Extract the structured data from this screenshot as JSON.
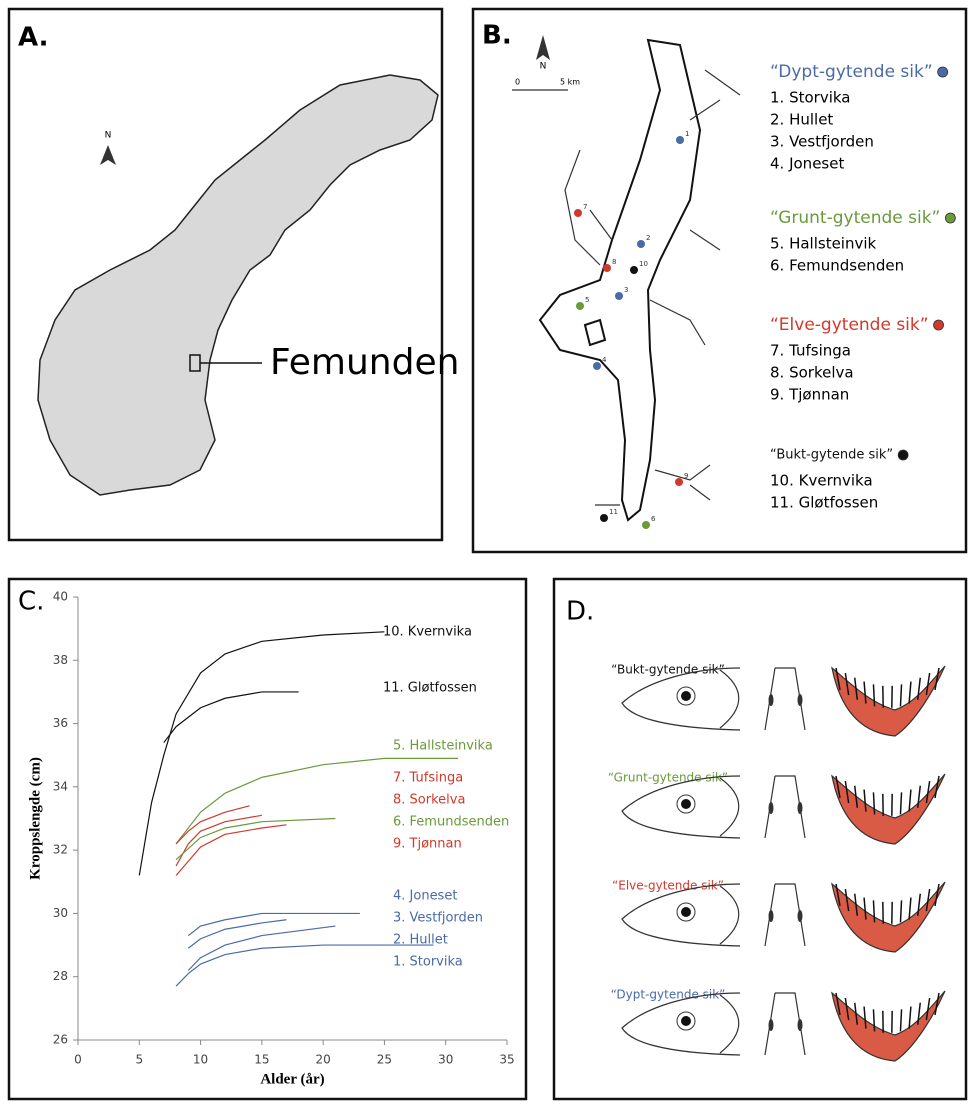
{
  "panel_a": {
    "letter": "A.",
    "north": "N",
    "label": "Femunden"
  },
  "panel_b": {
    "letter": "B.",
    "north": "N",
    "scale": [
      "0",
      "5 km"
    ],
    "sites": [
      {
        "label": "1",
        "color": "#4a6aa8"
      },
      {
        "label": "2",
        "color": "#4a6aa8"
      },
      {
        "label": "3",
        "color": "#4a6aa8"
      },
      {
        "label": "4",
        "color": "#4a6aa8"
      },
      {
        "label": "5",
        "color": "#6a9a3a"
      },
      {
        "label": "6",
        "color": "#6a9a3a"
      },
      {
        "label": "7",
        "color": "#d0392b"
      },
      {
        "label": "8",
        "color": "#d0392b"
      },
      {
        "label": "9",
        "color": "#d0392b"
      },
      {
        "label": "10",
        "color": "#111111"
      },
      {
        "label": "11",
        "color": "#111111"
      }
    ],
    "groups": [
      {
        "title": "“Dypt-gytende sik”",
        "color": "#4a6aa8",
        "items": [
          "1. Storvika",
          "2. Hullet",
          "3. Vestfjorden",
          "4. Joneset"
        ]
      },
      {
        "title": "“Grunt-gytende sik”",
        "color": "#6a9a3a",
        "items": [
          "5. Hallsteinvik",
          "6. Femundsenden"
        ]
      },
      {
        "title": "“Elve-gytende sik”",
        "color": "#d0392b",
        "items": [
          "7. Tufsinga",
          "8. Sorkelva",
          "9. Tjønnan"
        ]
      },
      {
        "title": "“Bukt-gytende sik”",
        "color": "#111111",
        "items": [
          "10. Kvernvika",
          "11. Gløtfossen"
        ]
      }
    ]
  },
  "chart_data": {
    "type": "line",
    "label": "C.",
    "x_label": "Alder (år)",
    "y_label": "Kroppslengde (cm)",
    "xlim": [
      0,
      35
    ],
    "xticks": [
      0,
      5,
      10,
      15,
      20,
      25,
      30,
      35
    ],
    "ylim": [
      26,
      40
    ],
    "yticks": [
      26,
      28,
      30,
      32,
      34,
      36,
      38,
      40
    ],
    "series": [
      {
        "name": "10. Kvernvika",
        "color": "#111111",
        "x": [
          5,
          6,
          7,
          8,
          10,
          12,
          15,
          20,
          25
        ],
        "values": [
          31.2,
          33.5,
          35,
          36.3,
          37.6,
          38.2,
          38.6,
          38.8,
          38.9
        ]
      },
      {
        "name": "11. Gløtfossen",
        "color": "#111111",
        "x": [
          7,
          8,
          10,
          12,
          15,
          18
        ],
        "values": [
          35.4,
          35.9,
          36.5,
          36.8,
          37,
          37
        ]
      },
      {
        "name": "5. Hallsteinvika",
        "color": "#6a9a3a",
        "x": [
          8,
          10,
          12,
          15,
          20,
          25,
          31
        ],
        "values": [
          32.2,
          33.2,
          33.8,
          34.3,
          34.7,
          34.9,
          34.9
        ]
      },
      {
        "name": "7. Tufsinga",
        "color": "#d0392b",
        "x": [
          8,
          9,
          10,
          12,
          14
        ],
        "values": [
          32.2,
          32.6,
          32.9,
          33.2,
          33.4
        ]
      },
      {
        "name": "8. Sorkelva",
        "color": "#d0392b",
        "x": [
          8,
          9,
          10,
          12,
          15
        ],
        "values": [
          31.5,
          32.2,
          32.6,
          32.9,
          33.1
        ]
      },
      {
        "name": "6. Femundsenden",
        "color": "#6a9a3a",
        "x": [
          8,
          10,
          12,
          15,
          21
        ],
        "values": [
          31.7,
          32.4,
          32.7,
          32.9,
          33
        ]
      },
      {
        "name": "9. Tjønnan",
        "color": "#d0392b",
        "x": [
          8,
          10,
          12,
          15,
          17
        ],
        "values": [
          31.2,
          32.1,
          32.5,
          32.7,
          32.8
        ]
      },
      {
        "name": "4. Joneset",
        "color": "#4a6aa8",
        "x": [
          9,
          10,
          12,
          15,
          20,
          23
        ],
        "values": [
          29.3,
          29.6,
          29.8,
          30,
          30,
          30
        ]
      },
      {
        "name": "3. Vestfjorden",
        "color": "#4a6aa8",
        "x": [
          9,
          10,
          12,
          15,
          17
        ],
        "values": [
          28.9,
          29.2,
          29.5,
          29.7,
          29.8
        ]
      },
      {
        "name": "2. Hullet",
        "color": "#4a6aa8",
        "x": [
          9,
          10,
          12,
          15,
          21
        ],
        "values": [
          28.2,
          28.6,
          29,
          29.3,
          29.6
        ]
      },
      {
        "name": "1. Storvika",
        "color": "#4a6aa8",
        "x": [
          8,
          9,
          10,
          12,
          15,
          20,
          29
        ],
        "values": [
          27.7,
          28.1,
          28.4,
          28.7,
          28.9,
          29,
          29
        ]
      }
    ]
  },
  "panel_d": {
    "letter": "D.",
    "groups": [
      {
        "label": "“Bukt-gytende sik”",
        "color": "#111111"
      },
      {
        "label": "“Grunt-gytende sik”",
        "color": "#6a9a3a"
      },
      {
        "label": "“Elve-gytende sik”",
        "color": "#d0392b"
      },
      {
        "label": "“Dypt-gytende sik”",
        "color": "#4a6aa8"
      }
    ]
  }
}
